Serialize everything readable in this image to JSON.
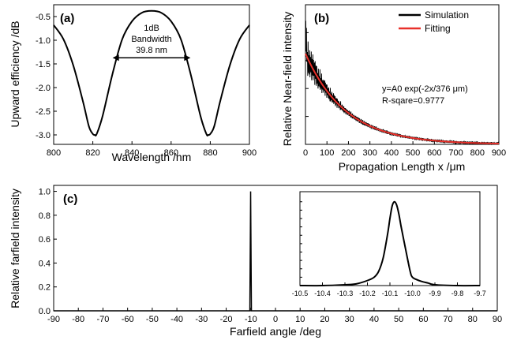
{
  "chart_data": [
    {
      "panel": "(a)",
      "type": "line",
      "xlabel": "Wavelength /nm",
      "ylabel": "Upward efficiency /dB",
      "xlim": [
        800,
        900
      ],
      "ylim": [
        -3.2,
        -0.25
      ],
      "xticks": [
        800,
        820,
        840,
        860,
        880,
        900
      ],
      "yticks": [
        -3.0,
        -2.5,
        -2.0,
        -1.5,
        -1.0,
        -0.5
      ],
      "xtick_labels": [
        "800",
        "820",
        "840",
        "860",
        "880",
        "900"
      ],
      "ytick_labels": [
        "-3.0",
        "-2.5",
        "-2.0",
        "-1.5",
        "-1.0",
        "-0.5"
      ],
      "annotation": {
        "line1": "1dB",
        "line2": "Bandwidth",
        "line3": "39.8 nm",
        "arrow_from": 830.1,
        "arrow_to": 869.9,
        "arrow_y": -1.37
      },
      "series": [
        {
          "name": "efficiency",
          "color": "#000000",
          "x": [
            800,
            805,
            810,
            815,
            818,
            820,
            821,
            822,
            825,
            830,
            835,
            840,
            845,
            850,
            855,
            860,
            865,
            870,
            875,
            878,
            879,
            880,
            882,
            885,
            890,
            895,
            900
          ],
          "y": [
            -0.68,
            -0.98,
            -1.53,
            -2.3,
            -2.82,
            -2.98,
            -3.0,
            -2.98,
            -2.6,
            -1.72,
            -0.98,
            -0.6,
            -0.42,
            -0.38,
            -0.42,
            -0.6,
            -0.98,
            -1.72,
            -2.6,
            -2.98,
            -3.0,
            -2.98,
            -2.82,
            -2.3,
            -1.53,
            -0.98,
            -0.68
          ]
        }
      ]
    },
    {
      "panel": "(b)",
      "type": "line",
      "xlabel": "Propagation Length x /μm",
      "ylabel": "Relative Near-field intensity",
      "xlim": [
        0,
        900
      ],
      "ylim": [
        0,
        1.0
      ],
      "xticks": [
        0,
        100,
        200,
        300,
        400,
        500,
        600,
        700,
        800,
        900
      ],
      "xtick_labels": [
        "0",
        "100",
        "200",
        "300",
        "400",
        "500",
        "600",
        "700",
        "800",
        "900"
      ],
      "fit_text": {
        "line1": "y=A0 exp(-2x/376 μm)",
        "line2": "R-sqare=0.9777"
      },
      "decay_length_um": 376,
      "amplitude": 0.65,
      "legend": [
        {
          "label": "Simulation",
          "color": "#000000"
        },
        {
          "label": "Fitting",
          "color": "#e8302a"
        }
      ]
    },
    {
      "panel": "(c)",
      "type": "line",
      "xlabel": "Farfield angle /deg",
      "ylabel": "Relative farfield intensity",
      "xlim": [
        -90,
        90
      ],
      "ylim": [
        0,
        1.05
      ],
      "xticks": [
        -90,
        -80,
        -70,
        -60,
        -50,
        -40,
        -30,
        -20,
        -10,
        0,
        10,
        20,
        30,
        40,
        50,
        60,
        70,
        80,
        90
      ],
      "yticks": [
        0.0,
        0.2,
        0.4,
        0.6,
        0.8,
        1.0
      ],
      "xtick_labels": [
        "-90",
        "-80",
        "-70",
        "-60",
        "-50",
        "-40",
        "-30",
        "-20",
        "-10",
        "0",
        "10",
        "20",
        "30",
        "40",
        "50",
        "60",
        "70",
        "80",
        "90"
      ],
      "ytick_labels": [
        "0.0",
        "0.2",
        "0.4",
        "0.6",
        "0.8",
        "1.0"
      ],
      "peak_angle_deg": -10.08,
      "peak_value": 1.0,
      "inset": {
        "xlim": [
          -10.5,
          -9.7
        ],
        "ylim": [
          0,
          1.12
        ],
        "xticks": [
          -10.5,
          -10.4,
          -10.3,
          -10.2,
          -10.1,
          -10.0,
          -9.9,
          -9.8,
          -9.7
        ],
        "xtick_labels": [
          "-10.5",
          "-10.4",
          "-10.3",
          "-10.2",
          "-10.1",
          "-10.0",
          "-9.9",
          "-9.8",
          "-9.7"
        ],
        "x": [
          -10.5,
          -10.4,
          -10.3,
          -10.25,
          -10.2,
          -10.17,
          -10.15,
          -10.13,
          -10.11,
          -10.1,
          -10.09,
          -10.08,
          -10.07,
          -10.06,
          -10.05,
          -10.03,
          -10.01,
          -10.0,
          -9.98,
          -9.96,
          -9.93,
          -9.9,
          -9.8,
          -9.7
        ],
        "y": [
          0.0,
          0.0,
          0.01,
          0.02,
          0.06,
          0.1,
          0.17,
          0.33,
          0.62,
          0.8,
          0.95,
          1.0,
          0.96,
          0.85,
          0.7,
          0.43,
          0.17,
          0.1,
          0.07,
          0.05,
          0.03,
          0.01,
          0.0,
          0.0
        ]
      }
    }
  ]
}
